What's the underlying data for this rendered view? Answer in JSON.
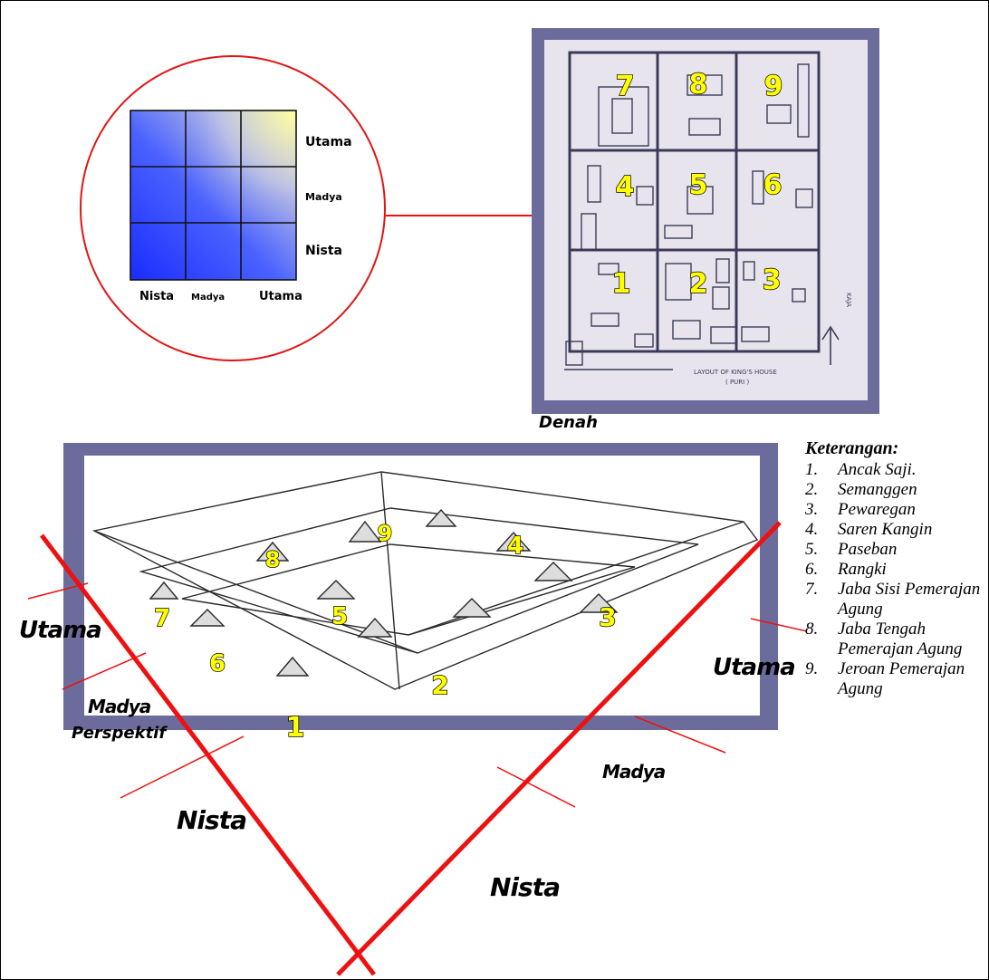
{
  "grid_diagram": {
    "row_labels": [
      "Utama",
      "Madya",
      "Nista"
    ],
    "col_labels": [
      "Nista",
      "Madya",
      "Utama"
    ]
  },
  "plan": {
    "caption": "Denah",
    "numbers": [
      "1",
      "2",
      "3",
      "4",
      "5",
      "6",
      "7",
      "8",
      "9"
    ],
    "layout_caption_line1": "LAYOUT OF KING'S HOUSE",
    "layout_caption_line2": "( PURI )",
    "north_label": "KAJA"
  },
  "perspective": {
    "caption": "Perspektif",
    "numbers": [
      "1",
      "2",
      "3",
      "4",
      "5",
      "6",
      "7",
      "8",
      "9"
    ],
    "left_zones": [
      "Utama",
      "Madya",
      "Nista"
    ],
    "right_zones": [
      "Utama",
      "Madya",
      "Nista"
    ]
  },
  "legend": {
    "title": "Keterangan:",
    "items": [
      {
        "num": "1.",
        "text": "Ancak Saji."
      },
      {
        "num": "2.",
        "text": "Semanggen"
      },
      {
        "num": "3.",
        "text": "Pewaregan"
      },
      {
        "num": "4.",
        "text": "Saren Kangin"
      },
      {
        "num": "5.",
        "text": "Paseban"
      },
      {
        "num": "6.",
        "text": "Rangki"
      },
      {
        "num": "7.",
        "text": "Jaba Sisi Pemerajan Agung"
      },
      {
        "num": "8.",
        "text": "Jaba Tengah Pemerajan Agung"
      },
      {
        "num": "9.",
        "text": "Jeroan Pemerajan Agung"
      }
    ]
  },
  "colors": {
    "frame": "#6c6c9c",
    "accent_red": "#ee1111",
    "number_fill": "#ffff00",
    "plan_bg": "#e8e4ee"
  }
}
